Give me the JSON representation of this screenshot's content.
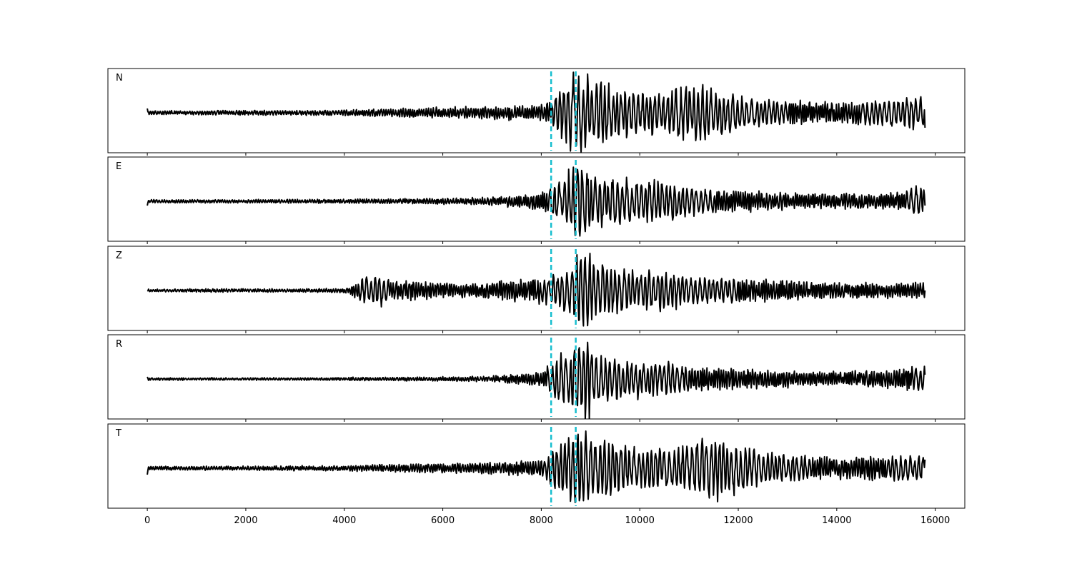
{
  "chart_data": {
    "type": "line",
    "title": "",
    "xlabel": "",
    "ylabel": "",
    "xlim": [
      -800,
      16600
    ],
    "xticks": [
      0,
      2000,
      4000,
      6000,
      8000,
      10000,
      12000,
      14000,
      16000
    ],
    "xtick_labels": [
      "0",
      "2000",
      "4000",
      "6000",
      "8000",
      "10000",
      "12000",
      "14000",
      "16000"
    ],
    "n_samples": 15800,
    "grid": false,
    "trace_color": "#000000",
    "pick_color": "#17becf",
    "picks": [
      8200,
      8700
    ],
    "panels": [
      {
        "label": "N",
        "start_value": 0.1,
        "end_value": -0.35,
        "envelope": [
          [
            0,
            0.05
          ],
          [
            1000,
            0.05
          ],
          [
            2000,
            0.06
          ],
          [
            3000,
            0.06
          ],
          [
            4000,
            0.07
          ],
          [
            5000,
            0.1
          ],
          [
            6000,
            0.13
          ],
          [
            7000,
            0.16
          ],
          [
            7800,
            0.18
          ],
          [
            8200,
            0.25
          ],
          [
            8400,
            0.75
          ],
          [
            8700,
            0.95
          ],
          [
            9000,
            0.85
          ],
          [
            9500,
            0.6
          ],
          [
            10000,
            0.55
          ],
          [
            10500,
            0.5
          ],
          [
            11000,
            0.75
          ],
          [
            11500,
            0.6
          ],
          [
            12000,
            0.4
          ],
          [
            13000,
            0.3
          ],
          [
            14000,
            0.25
          ],
          [
            15000,
            0.35
          ],
          [
            15800,
            0.4
          ]
        ]
      },
      {
        "label": "E",
        "start_value": -0.1,
        "end_value": -0.1,
        "envelope": [
          [
            0,
            0.04
          ],
          [
            1000,
            0.04
          ],
          [
            2000,
            0.04
          ],
          [
            3000,
            0.05
          ],
          [
            4000,
            0.05
          ],
          [
            5000,
            0.06
          ],
          [
            6000,
            0.07
          ],
          [
            7000,
            0.1
          ],
          [
            7500,
            0.15
          ],
          [
            8000,
            0.2
          ],
          [
            8300,
            0.45
          ],
          [
            8600,
            0.9
          ],
          [
            8800,
            1.0
          ],
          [
            9000,
            0.7
          ],
          [
            9300,
            0.6
          ],
          [
            9800,
            0.55
          ],
          [
            10400,
            0.5
          ],
          [
            11000,
            0.35
          ],
          [
            12000,
            0.25
          ],
          [
            13000,
            0.2
          ],
          [
            14000,
            0.18
          ],
          [
            15000,
            0.2
          ],
          [
            15800,
            0.4
          ]
        ]
      },
      {
        "label": "Z",
        "start_value": 0.0,
        "end_value": 0.0,
        "envelope": [
          [
            0,
            0.03
          ],
          [
            1000,
            0.04
          ],
          [
            2000,
            0.04
          ],
          [
            3000,
            0.04
          ],
          [
            4000,
            0.05
          ],
          [
            4300,
            0.3
          ],
          [
            4700,
            0.45
          ],
          [
            5000,
            0.25
          ],
          [
            5500,
            0.22
          ],
          [
            6000,
            0.18
          ],
          [
            6500,
            0.15
          ],
          [
            7000,
            0.22
          ],
          [
            7500,
            0.3
          ],
          [
            8000,
            0.3
          ],
          [
            8400,
            0.45
          ],
          [
            8700,
            0.8
          ],
          [
            8900,
            0.95
          ],
          [
            9200,
            0.7
          ],
          [
            9600,
            0.55
          ],
          [
            10000,
            0.45
          ],
          [
            10500,
            0.5
          ],
          [
            11000,
            0.35
          ],
          [
            12000,
            0.3
          ],
          [
            13000,
            0.25
          ],
          [
            14000,
            0.2
          ],
          [
            15000,
            0.18
          ],
          [
            15800,
            0.2
          ]
        ]
      },
      {
        "label": "R",
        "start_value": 0.05,
        "end_value": 0.1,
        "envelope": [
          [
            0,
            0.03
          ],
          [
            1000,
            0.03
          ],
          [
            2000,
            0.03
          ],
          [
            3000,
            0.03
          ],
          [
            4000,
            0.04
          ],
          [
            5000,
            0.04
          ],
          [
            6000,
            0.05
          ],
          [
            7000,
            0.07
          ],
          [
            7500,
            0.12
          ],
          [
            8000,
            0.18
          ],
          [
            8400,
            0.6
          ],
          [
            8700,
            0.85
          ],
          [
            8900,
            1.0
          ],
          [
            9200,
            0.6
          ],
          [
            9600,
            0.45
          ],
          [
            10000,
            0.45
          ],
          [
            10500,
            0.45
          ],
          [
            11000,
            0.3
          ],
          [
            12000,
            0.25
          ],
          [
            13000,
            0.2
          ],
          [
            14000,
            0.18
          ],
          [
            15000,
            0.2
          ],
          [
            15800,
            0.35
          ]
        ]
      },
      {
        "label": "T",
        "start_value": -0.15,
        "end_value": 0.2,
        "envelope": [
          [
            0,
            0.05
          ],
          [
            1000,
            0.05
          ],
          [
            2000,
            0.05
          ],
          [
            3000,
            0.06
          ],
          [
            4000,
            0.06
          ],
          [
            5000,
            0.1
          ],
          [
            6000,
            0.12
          ],
          [
            7000,
            0.14
          ],
          [
            8000,
            0.2
          ],
          [
            8300,
            0.55
          ],
          [
            8600,
            0.9
          ],
          [
            8900,
            0.95
          ],
          [
            9200,
            0.8
          ],
          [
            9600,
            0.6
          ],
          [
            10000,
            0.5
          ],
          [
            10500,
            0.45
          ],
          [
            11000,
            0.6
          ],
          [
            11300,
            0.8
          ],
          [
            11800,
            0.7
          ],
          [
            12300,
            0.45
          ],
          [
            13000,
            0.35
          ],
          [
            14000,
            0.25
          ],
          [
            15000,
            0.3
          ],
          [
            15800,
            0.35
          ]
        ]
      }
    ]
  }
}
